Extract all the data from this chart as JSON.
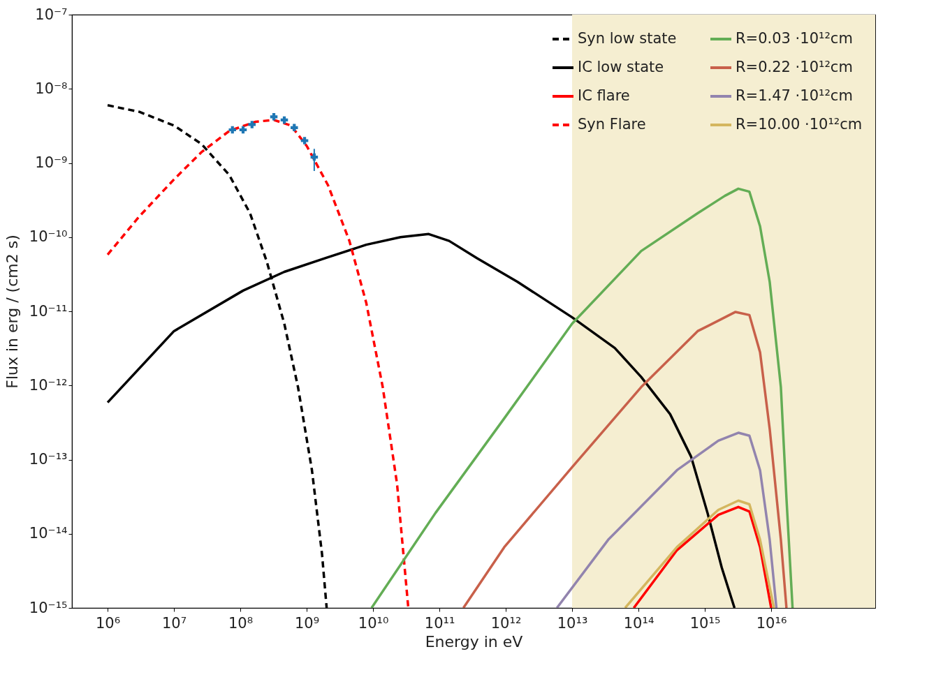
{
  "chart_data": {
    "type": "line",
    "xlabel": "Energy in eV",
    "ylabel": "Flux in erg / (cm2 s)",
    "log": "xy",
    "grid": false,
    "legend": "top right",
    "xlim": [
      290000.0,
      3.7e+17
    ],
    "ylim": [
      1e-15,
      1e-07
    ],
    "xticks": [
      {
        "value": 1000000.0,
        "label": "10⁶"
      },
      {
        "value": 10000000.0,
        "label": "10⁷"
      },
      {
        "value": 100000000.0,
        "label": "10⁸"
      },
      {
        "value": 1000000000.0,
        "label": "10⁹"
      },
      {
        "value": 10000000000.0,
        "label": "10¹⁰"
      },
      {
        "value": 100000000000.0,
        "label": "10¹¹"
      },
      {
        "value": 1000000000000.0,
        "label": "10¹²"
      },
      {
        "value": 10000000000000.0,
        "label": "10¹³"
      },
      {
        "value": 100000000000000.0,
        "label": "10¹⁴"
      },
      {
        "value": 1000000000000000.0,
        "label": "10¹⁵"
      },
      {
        "value": 1e+16,
        "label": "10¹⁶"
      }
    ],
    "yticks": [
      {
        "value": 1e-15,
        "label": "10⁻¹⁵"
      },
      {
        "value": 1e-14,
        "label": "10⁻¹⁴"
      },
      {
        "value": 1e-13,
        "label": "10⁻¹³"
      },
      {
        "value": 1e-12,
        "label": "10⁻¹²"
      },
      {
        "value": 1e-11,
        "label": "10⁻¹¹"
      },
      {
        "value": 1e-10,
        "label": "10⁻¹⁰"
      },
      {
        "value": 1e-09,
        "label": "10⁻⁹"
      },
      {
        "value": 1e-08,
        "label": "10⁻⁸"
      },
      {
        "value": 1e-07,
        "label": "10⁻⁷"
      }
    ],
    "bands": [
      {
        "axis": "x",
        "from": 10000000000000.0,
        "to": 3.7e+17,
        "color": "#f5eed1"
      }
    ],
    "series": [
      {
        "name": "Syn low state",
        "type": "line",
        "color": "#000000",
        "line_style": "dashed",
        "x": [
          1000000.0,
          3000000.0,
          10000000.0,
          26000000.0,
          68000000.0,
          140000000.0,
          250000000.0,
          460000000.0,
          740000000.0,
          1200000000.0,
          1700000000.0,
          2000000000.0
        ],
        "values": [
          6e-09,
          4.9e-09,
          3.2e-09,
          1.8e-09,
          6.9e-10,
          2.1e-10,
          4.7e-11,
          6.8e-12,
          9.5e-13,
          7.2e-14,
          5.4e-15,
          1e-15
        ]
      },
      {
        "name": "IC low state",
        "type": "line",
        "color": "#000000",
        "line_style": "solid",
        "x": [
          1000000.0,
          10000000.0,
          110000000.0,
          460000000.0,
          1900000000.0,
          7900000000.0,
          26000000000.0,
          69000000000.0,
          140000000000.0,
          370000000000.0,
          1500000000000.0,
          10000000000000.0,
          44000000000000.0,
          110000000000000.0,
          300000000000000.0,
          620000000000000.0,
          1100000000000000.0,
          1800000000000000.0,
          2800000000000000.0
        ],
        "values": [
          5.9e-13,
          5.4e-12,
          1.9e-11,
          3.4e-11,
          5.2e-11,
          7.9e-11,
          1e-10,
          1.1e-10,
          8.9e-11,
          5.2e-11,
          2.5e-11,
          8.3e-12,
          3.2e-12,
          1.3e-12,
          4.1e-13,
          1.1e-13,
          1.9e-14,
          3.5e-15,
          1e-15
        ]
      },
      {
        "name": "IC flare",
        "type": "line",
        "color": "#ff0000",
        "line_style": "solid",
        "x": [
          85000000000000.0,
          380000000000000.0,
          1600000000000000.0,
          3200000000000000.0,
          4700000000000000.0,
          6800000000000000.0,
          1e+16
        ],
        "values": [
          1e-15,
          6e-15,
          1.8e-14,
          2.3e-14,
          2e-14,
          6.6e-15,
          1e-15
        ]
      },
      {
        "name": "Syn Flare",
        "type": "line",
        "color": "#ff0000",
        "line_style": "dashed",
        "x": [
          1000000.0,
          3000000.0,
          10000000.0,
          26000000.0,
          68000000.0,
          170000000.0,
          320000000.0,
          580000000.0,
          1000000000.0,
          2100000000.0,
          4400000000.0,
          7900000000.0,
          14000000000.0,
          23000000000.0,
          34000000000.0
        ],
        "values": [
          5.8e-11,
          1.9e-10,
          6e-10,
          1.4e-09,
          2.7e-09,
          3.6e-09,
          3.8e-09,
          3.2e-09,
          1.7e-09,
          5e-10,
          8.9e-11,
          1.3e-11,
          9.5e-13,
          4.7e-14,
          1e-15
        ]
      },
      {
        "name": "R=0.03 ·10¹²cm",
        "type": "line",
        "color": "#63ad55",
        "line_style": "solid",
        "x": [
          9500000000.0,
          87000000000.0,
          950000000000.0,
          10000000000000.0,
          110000000000000.0,
          780000000000000.0,
          2000000000000000.0,
          3200000000000000.0,
          4700000000000000.0,
          6800000000000000.0,
          9500000000000000.0,
          1.4e+16,
          1.7e+16,
          2.1e+16
        ],
        "values": [
          1e-15,
          1.9e-14,
          3.6e-13,
          6.8e-12,
          6.5e-11,
          2.1e-10,
          3.6e-10,
          4.5e-10,
          4.1e-10,
          1.4e-10,
          2.5e-11,
          9.5e-13,
          3e-14,
          1e-15
        ]
      },
      {
        "name": "R=0.22 ·10¹²cm",
        "type": "line",
        "color": "#c8604a",
        "line_style": "solid",
        "x": [
          230000000000.0,
          950000000000.0,
          10000000000000.0,
          110000000000000.0,
          780000000000000.0,
          2900000000000000.0,
          4700000000000000.0,
          6800000000000000.0,
          9500000000000000.0,
          1.4e+16,
          1.7e+16
        ],
        "values": [
          1e-15,
          6.6e-15,
          7.9e-14,
          9.5e-13,
          5.4e-12,
          9.8e-12,
          8.9e-12,
          2.8e-12,
          2.6e-13,
          8.3e-15,
          1e-15
        ]
      },
      {
        "name": "R=1.47 ·10¹²cm",
        "type": "line",
        "color": "#9284ae",
        "line_style": "solid",
        "x": [
          5900000000000.0,
          35000000000000.0,
          380000000000000.0,
          1600000000000000.0,
          3200000000000000.0,
          4700000000000000.0,
          6800000000000000.0,
          9500000000000000.0,
          1.2e+16
        ],
        "values": [
          1e-15,
          8.3e-15,
          7.2e-14,
          1.8e-13,
          2.3e-13,
          2.1e-13,
          7.2e-14,
          8.3e-15,
          1e-15
        ]
      },
      {
        "name": "R=10.00 ·10¹²cm",
        "type": "line",
        "color": "#d4b65e",
        "line_style": "solid",
        "x": [
          63000000000000.0,
          380000000000000.0,
          1600000000000000.0,
          3200000000000000.0,
          4700000000000000.0,
          6800000000000000.0,
          1.1e+16
        ],
        "values": [
          1e-15,
          6.6e-15,
          2.1e-14,
          2.8e-14,
          2.5e-14,
          8.3e-15,
          1e-15
        ]
      },
      {
        "type": "scatter",
        "color": "#1f77b4",
        "marker": "cross",
        "x": [
          76000000.0,
          110000000.0,
          150000000.0,
          320000000.0,
          460000000.0,
          650000000.0,
          930000000.0,
          1300000000.0
        ],
        "values": [
          2.8e-09,
          2.8e-09,
          3.3e-09,
          4.2e-09,
          3.8e-09,
          3e-09,
          2e-09,
          1.2e-09
        ],
        "errors": [
          null,
          null,
          null,
          null,
          null,
          null,
          null,
          [
            7.8e-10,
            1.55e-09
          ]
        ]
      }
    ]
  }
}
